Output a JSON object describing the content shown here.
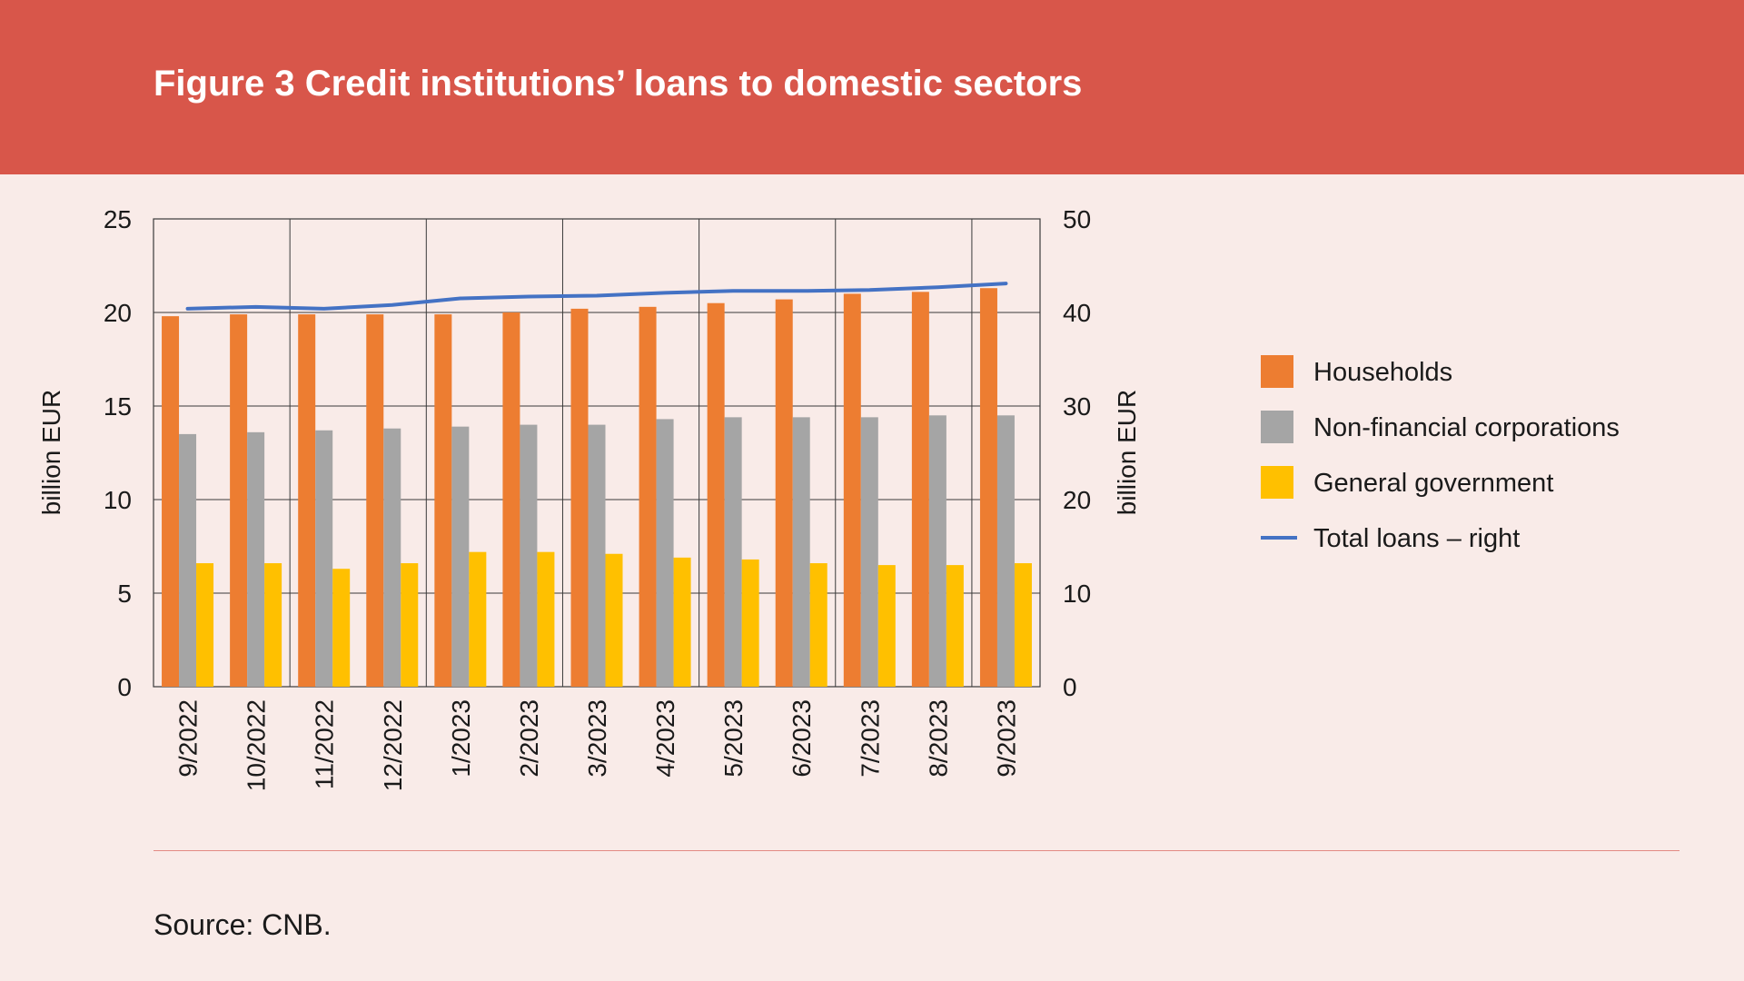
{
  "title": "Figure 3 Credit institutions’ loans to domestic sectors",
  "source": "Source: CNB.",
  "colors": {
    "households": "#ed7d31",
    "corporations": "#a5a5a5",
    "government": "#ffc000",
    "total": "#4472c4"
  },
  "chart_data": {
    "type": "bar",
    "categories": [
      "9/2022",
      "10/2022",
      "11/2022",
      "12/2022",
      "1/2023",
      "2/2023",
      "3/2023",
      "4/2023",
      "5/2023",
      "6/2023",
      "7/2023",
      "8/2023",
      "9/2023"
    ],
    "series": [
      {
        "name": "Households",
        "type": "bar",
        "axis": "left",
        "values": [
          19.8,
          19.9,
          19.9,
          19.9,
          19.9,
          20.0,
          20.2,
          20.3,
          20.5,
          20.7,
          21.0,
          21.1,
          21.3
        ]
      },
      {
        "name": "Non-financial corporations",
        "type": "bar",
        "axis": "left",
        "values": [
          13.5,
          13.6,
          13.7,
          13.8,
          13.9,
          14.0,
          14.0,
          14.3,
          14.4,
          14.4,
          14.4,
          14.5,
          14.5
        ]
      },
      {
        "name": "General government",
        "type": "bar",
        "axis": "left",
        "values": [
          6.6,
          6.6,
          6.3,
          6.6,
          7.2,
          7.2,
          7.1,
          6.9,
          6.8,
          6.6,
          6.5,
          6.5,
          6.6
        ]
      },
      {
        "name": "Total loans – right",
        "type": "line",
        "axis": "right",
        "values": [
          40.4,
          40.6,
          40.4,
          40.8,
          41.5,
          41.7,
          41.8,
          42.1,
          42.3,
          42.3,
          42.4,
          42.7,
          43.1
        ]
      }
    ],
    "ylabel": "billion EUR",
    "y2label": "billion EUR",
    "ylim": [
      0,
      25
    ],
    "y2lim": [
      0,
      50
    ],
    "yticks": [
      "0",
      "5",
      "10",
      "15",
      "20",
      "25"
    ],
    "y2ticks": [
      "0",
      "10",
      "20",
      "30",
      "40",
      "50"
    ],
    "grid": true,
    "legend_position": "right"
  }
}
